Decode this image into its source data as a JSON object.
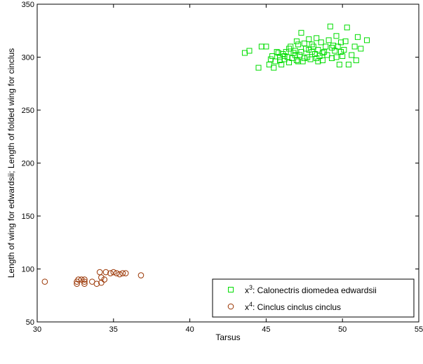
{
  "chart_data": {
    "type": "scatter",
    "xlabel": "Tarsus",
    "ylabel": "Length of wing for edwardsii; Length of folded wing for cinclus",
    "xlim": [
      30,
      55
    ],
    "ylim": [
      50,
      350
    ],
    "xticks": [
      30,
      35,
      40,
      45,
      50,
      55
    ],
    "yticks": [
      50,
      100,
      150,
      200,
      250,
      300,
      350
    ],
    "grid": false,
    "legend_position": "bottom-right",
    "series": [
      {
        "name": "x3: Calonectris diomedea edwardsii",
        "name_base": "x",
        "name_sup": "3",
        "name_rest": ": Calonectris diomedea edwardsii",
        "marker": "square",
        "color": "#00dd00",
        "points": [
          [
            43.6,
            304
          ],
          [
            43.9,
            306
          ],
          [
            44.5,
            290
          ],
          [
            44.7,
            310
          ],
          [
            45.0,
            310
          ],
          [
            45.2,
            293
          ],
          [
            45.3,
            298
          ],
          [
            45.4,
            301
          ],
          [
            45.5,
            290
          ],
          [
            45.6,
            296
          ],
          [
            45.8,
            304
          ],
          [
            45.9,
            300
          ],
          [
            46.0,
            293
          ],
          [
            46.1,
            303
          ],
          [
            46.2,
            301
          ],
          [
            46.3,
            305
          ],
          [
            46.5,
            295
          ],
          [
            46.6,
            310
          ],
          [
            46.7,
            299
          ],
          [
            46.8,
            304
          ],
          [
            46.9,
            306
          ],
          [
            47.0,
            297
          ],
          [
            47.1,
            312
          ],
          [
            47.2,
            302
          ],
          [
            47.3,
            305
          ],
          [
            47.4,
            296
          ],
          [
            47.5,
            313
          ],
          [
            47.6,
            308
          ],
          [
            47.7,
            300
          ],
          [
            47.8,
            317
          ],
          [
            47.9,
            298
          ],
          [
            48.0,
            305
          ],
          [
            48.1,
            310
          ],
          [
            48.2,
            303
          ],
          [
            48.3,
            299
          ],
          [
            48.4,
            307
          ],
          [
            48.5,
            301
          ],
          [
            48.6,
            314
          ],
          [
            48.7,
            297
          ],
          [
            48.8,
            305
          ],
          [
            48.9,
            310
          ],
          [
            49.0,
            302
          ],
          [
            49.1,
            316
          ],
          [
            49.2,
            329
          ],
          [
            49.3,
            299
          ],
          [
            49.4,
            311
          ],
          [
            49.5,
            306
          ],
          [
            49.6,
            320
          ],
          [
            49.7,
            310
          ],
          [
            49.8,
            293
          ],
          [
            49.9,
            314
          ],
          [
            50.0,
            301
          ],
          [
            50.1,
            307
          ],
          [
            50.3,
            328
          ],
          [
            50.4,
            293
          ],
          [
            50.6,
            302
          ],
          [
            50.8,
            310
          ],
          [
            50.9,
            297
          ],
          [
            51.0,
            319
          ],
          [
            51.2,
            308
          ],
          [
            51.6,
            316
          ],
          [
            47.3,
            323
          ],
          [
            46.5,
            308
          ],
          [
            45.9,
            297
          ],
          [
            48.4,
            296
          ],
          [
            49.6,
            300
          ],
          [
            47.0,
            315
          ],
          [
            46.2,
            298
          ],
          [
            48.0,
            312
          ],
          [
            45.7,
            305
          ],
          [
            47.8,
            307
          ],
          [
            49.3,
            309
          ],
          [
            50.2,
            315
          ],
          [
            46.9,
            302
          ],
          [
            48.7,
            304
          ],
          [
            47.5,
            299
          ],
          [
            46.4,
            300
          ],
          [
            49.9,
            305
          ],
          [
            48.3,
            318
          ],
          [
            47.1,
            296
          ]
        ]
      },
      {
        "name": "x4: Cinclus cinclus cinclus",
        "name_base": "x",
        "name_sup": "4",
        "name_rest": ": Cinclus cinclus cinclus",
        "marker": "circle",
        "color": "#993300",
        "points": [
          [
            30.5,
            88
          ],
          [
            32.6,
            86
          ],
          [
            32.6,
            88
          ],
          [
            32.7,
            90
          ],
          [
            32.9,
            90
          ],
          [
            33.1,
            86
          ],
          [
            33.1,
            88
          ],
          [
            33.1,
            90
          ],
          [
            33.6,
            88
          ],
          [
            33.9,
            86
          ],
          [
            34.1,
            97
          ],
          [
            34.2,
            92
          ],
          [
            34.2,
            87
          ],
          [
            34.4,
            90
          ],
          [
            34.5,
            97
          ],
          [
            34.8,
            96
          ],
          [
            35.0,
            97
          ],
          [
            35.2,
            96
          ],
          [
            35.4,
            95
          ],
          [
            35.6,
            96
          ],
          [
            35.8,
            96
          ],
          [
            36.8,
            94
          ]
        ]
      }
    ]
  }
}
